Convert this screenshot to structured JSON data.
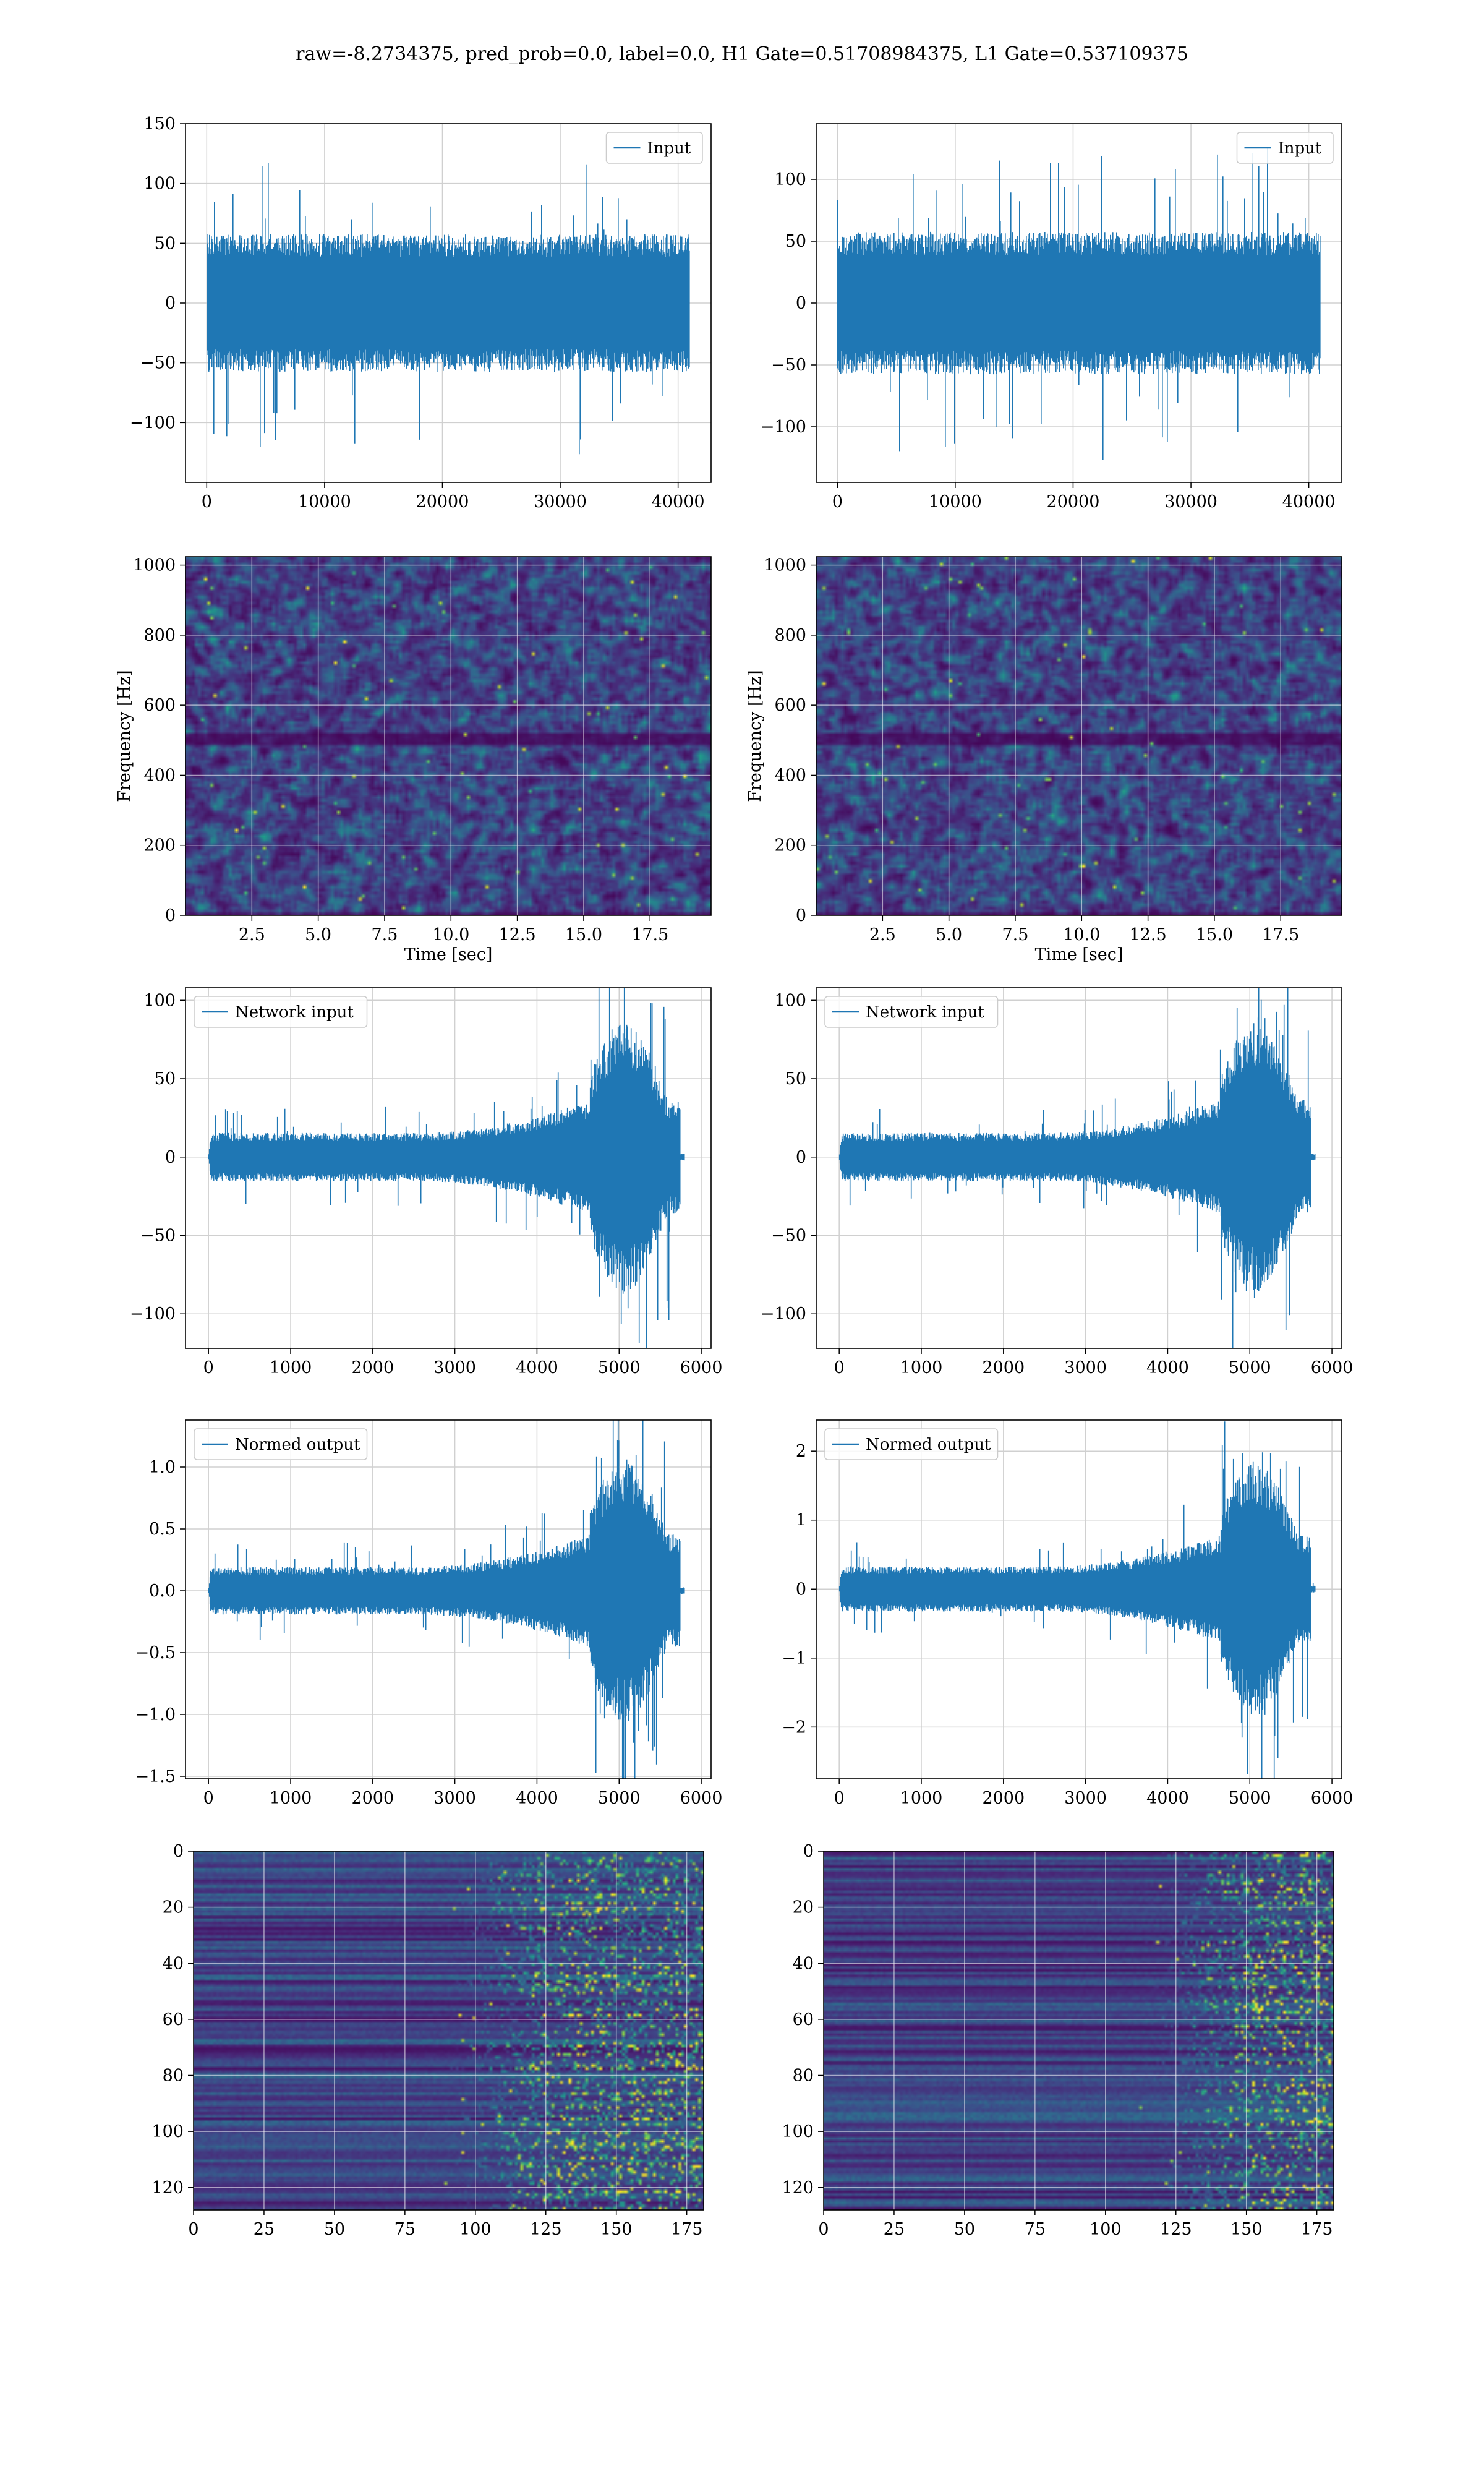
{
  "suptitle": "raw=-8.2734375, pred_prob=0.0, label=0.0, H1 Gate=0.51708984375, L1 Gate=0.537109375",
  "colors": {
    "line": "#1f77b4",
    "grid": "#d0d0d0",
    "viridis_low": "#440154",
    "viridis_mid": "#21918c",
    "viridis_high": "#fde725"
  },
  "chart_data": [
    {
      "id": "input-h1",
      "type": "line",
      "xlim": [
        -1800,
        42800
      ],
      "ylim": [
        -150,
        150
      ],
      "xticks": [
        0,
        10000,
        20000,
        30000,
        40000
      ],
      "yticks": [
        -100,
        -50,
        0,
        50,
        100,
        150
      ],
      "series": [
        {
          "name": "Input",
          "n": 40960,
          "envelope": "stationary",
          "amplitude_std": 30,
          "amplitude_peak": 137
        }
      ],
      "legend": "upper right",
      "grid": true
    },
    {
      "id": "input-l1",
      "type": "line",
      "xlim": [
        -1800,
        42800
      ],
      "ylim": [
        -145,
        145
      ],
      "xticks": [
        0,
        10000,
        20000,
        30000,
        40000
      ],
      "yticks": [
        -100,
        -50,
        0,
        50,
        100
      ],
      "series": [
        {
          "name": "Input",
          "n": 40960,
          "envelope": "stationary",
          "amplitude_std": 30,
          "amplitude_peak": 128
        }
      ],
      "legend": "upper right",
      "grid": true
    },
    {
      "id": "spectrogram-h1",
      "type": "heatmap",
      "xlabel": "Time [sec]",
      "ylabel": "Frequency [Hz]",
      "xlim": [
        0,
        19.8
      ],
      "ylim": [
        0,
        1024
      ],
      "xticks": [
        2.5,
        5.0,
        7.5,
        10.0,
        12.5,
        15.0,
        17.5
      ],
      "yticks": [
        0,
        200,
        400,
        600,
        800,
        1000
      ],
      "colormap": "viridis",
      "grid": true
    },
    {
      "id": "spectrogram-l1",
      "type": "heatmap",
      "xlabel": "Time [sec]",
      "ylabel": "Frequency [Hz]",
      "xlim": [
        0,
        19.8
      ],
      "ylim": [
        0,
        1024
      ],
      "xticks": [
        2.5,
        5.0,
        7.5,
        10.0,
        12.5,
        15.0,
        17.5
      ],
      "yticks": [
        0,
        200,
        400,
        600,
        800,
        1000
      ],
      "colormap": "viridis",
      "grid": true
    },
    {
      "id": "network-input-h1",
      "type": "line",
      "xlim": [
        -280,
        6120
      ],
      "ylim": [
        -122,
        108
      ],
      "xticks": [
        0,
        1000,
        2000,
        3000,
        4000,
        5000,
        6000
      ],
      "yticks": [
        -100,
        -50,
        0,
        50,
        100
      ],
      "series": [
        {
          "name": "Network input",
          "n": 5800,
          "envelope": "chirp",
          "amplitude_std": 8,
          "amplitude_peak": 100,
          "burst_start": 4650,
          "burst_end": 5750
        }
      ],
      "legend": "upper left",
      "grid": true
    },
    {
      "id": "network-input-l1",
      "type": "line",
      "xlim": [
        -280,
        6120
      ],
      "ylim": [
        -122,
        108
      ],
      "xticks": [
        0,
        1000,
        2000,
        3000,
        4000,
        5000,
        6000
      ],
      "yticks": [
        -100,
        -50,
        0,
        50,
        100
      ],
      "series": [
        {
          "name": "Network input",
          "n": 5800,
          "envelope": "chirp",
          "amplitude_std": 8,
          "amplitude_peak": 102,
          "burst_start": 4650,
          "burst_end": 5750
        }
      ],
      "legend": "upper left",
      "grid": true
    },
    {
      "id": "normed-output-h1",
      "type": "line",
      "xlim": [
        -280,
        6120
      ],
      "ylim": [
        -1.52,
        1.38
      ],
      "xticks": [
        0,
        1000,
        2000,
        3000,
        4000,
        5000,
        6000
      ],
      "yticks": [
        -1.5,
        -1.0,
        -0.5,
        0.0,
        0.5,
        1.0
      ],
      "series": [
        {
          "name": "Normed output",
          "n": 5800,
          "envelope": "chirp",
          "amplitude_std": 0.1,
          "amplitude_peak": 1.25,
          "burst_start": 4650,
          "burst_end": 5750
        }
      ],
      "legend": "upper left",
      "grid": true
    },
    {
      "id": "normed-output-l1",
      "type": "line",
      "xlim": [
        -280,
        6120
      ],
      "ylim": [
        -2.75,
        2.45
      ],
      "xticks": [
        0,
        1000,
        2000,
        3000,
        4000,
        5000,
        6000
      ],
      "yticks": [
        -2,
        -1,
        0,
        1,
        2
      ],
      "series": [
        {
          "name": "Normed output",
          "n": 5800,
          "envelope": "chirp",
          "amplitude_std": 0.17,
          "amplitude_peak": 2.2,
          "burst_start": 4650,
          "burst_end": 5750
        }
      ],
      "legend": "upper left",
      "grid": true
    },
    {
      "id": "feature-map-h1",
      "type": "heatmap",
      "xlim": [
        0,
        181
      ],
      "ylim": [
        128,
        0
      ],
      "xticks": [
        0,
        25,
        50,
        75,
        100,
        125,
        150,
        175
      ],
      "yticks": [
        0,
        20,
        40,
        60,
        80,
        100,
        120
      ],
      "colormap": "viridis",
      "grid": true,
      "activity_onset": 100
    },
    {
      "id": "feature-map-l1",
      "type": "heatmap",
      "xlim": [
        0,
        181
      ],
      "ylim": [
        128,
        0
      ],
      "xticks": [
        0,
        25,
        50,
        75,
        100,
        125,
        150,
        175
      ],
      "yticks": [
        0,
        20,
        40,
        60,
        80,
        100,
        120
      ],
      "colormap": "viridis",
      "grid": true,
      "activity_onset": 125
    }
  ]
}
